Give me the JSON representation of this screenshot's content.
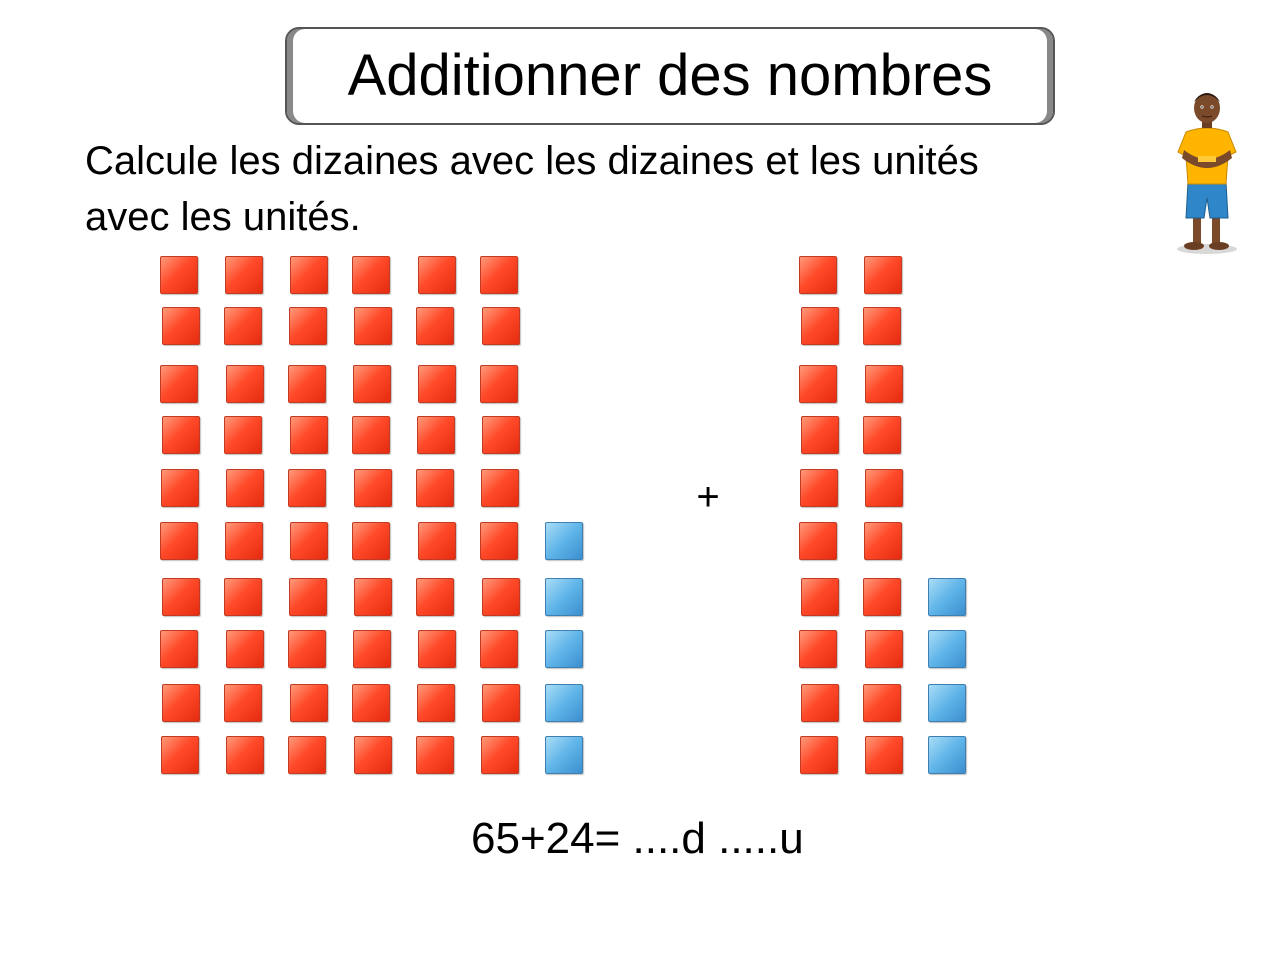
{
  "slide": {
    "title": "Additionner des nombres",
    "instruction_line1": "Calcule les dizaines avec les dizaines et les unités",
    "instruction_line2": "avec les unités.",
    "operator": "+",
    "equation": "65+24= ....d .....u"
  },
  "blocks": {
    "first_number": {
      "value": 65,
      "tens": 6,
      "units": 5
    },
    "second_number": {
      "value": 24,
      "tens": 2,
      "units": 4
    }
  },
  "colors": {
    "tens_cube": "#ff4a2a",
    "units_cube": "#5fb4e8",
    "character_shirt": "#ffb400",
    "character_shorts": "#2f86c8"
  },
  "icons": {
    "character": "student-character-icon"
  }
}
